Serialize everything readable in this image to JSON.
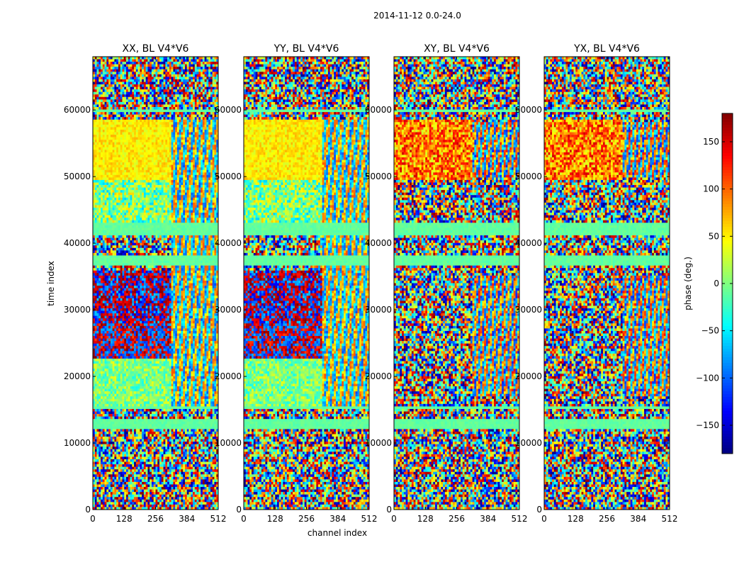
{
  "suptitle": "2014-11-12 0.0-24.0",
  "colormap": "jet",
  "panels": [
    {
      "title": "XX, BL V4*V6"
    },
    {
      "title": "YY, BL V4*V6"
    },
    {
      "title": "XY, BL V4*V6"
    },
    {
      "title": "YX, BL V4*V6"
    }
  ],
  "xlabel": "channel index",
  "ylabel": "time index",
  "colorbar": {
    "label": "phase (deg.)",
    "ticks": [
      150,
      100,
      50,
      0,
      -50,
      -100,
      -150
    ]
  },
  "chart_data": {
    "type": "heatmap",
    "title": "2014-11-12 0.0-24.0",
    "xlabel": "channel index",
    "ylabel": "time index",
    "xlim": [
      0,
      512
    ],
    "ylim": [
      0,
      68000
    ],
    "x_ticks": [
      0,
      128,
      256,
      384,
      512
    ],
    "y_ticks": [
      0,
      10000,
      20000,
      30000,
      40000,
      50000,
      60000
    ],
    "clim": [
      -180,
      180
    ],
    "colorbar_label": "phase (deg.)",
    "colorbar_ticks": [
      150,
      100,
      50,
      0,
      -50,
      -100,
      -150
    ],
    "series": [
      {
        "name": "XX, BL V4*V6"
      },
      {
        "name": "YY, BL V4*V6"
      },
      {
        "name": "XY, BL V4*V6"
      },
      {
        "name": "YX, BL V4*V6"
      }
    ]
  }
}
